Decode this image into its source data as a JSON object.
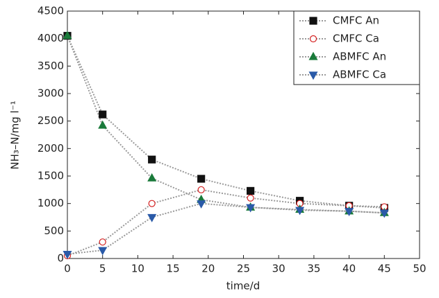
{
  "chart_data": {
    "type": "line",
    "xlabel": "time/d",
    "ylabel": "NH₃–N/mg l⁻¹",
    "xlim": [
      0,
      50
    ],
    "xticks": [
      0,
      5,
      10,
      15,
      20,
      25,
      30,
      35,
      40,
      45,
      50
    ],
    "ylim": [
      0,
      4500
    ],
    "yticks": [
      0,
      500,
      1000,
      1500,
      2000,
      2500,
      3000,
      3500,
      4000,
      4500
    ],
    "grid": false,
    "legend": "upper right",
    "x": [
      0,
      5,
      12,
      19,
      26,
      33,
      40,
      45
    ],
    "series": [
      {
        "name": "CMFC An",
        "color": "#111111",
        "marker": "square",
        "filled": true,
        "values": [
          4050,
          2620,
          1800,
          1450,
          1230,
          1050,
          960,
          920
        ]
      },
      {
        "name": "CMFC Ca",
        "color": "#d42020",
        "marker": "circle",
        "filled": false,
        "values": [
          50,
          300,
          1000,
          1250,
          1100,
          1000,
          960,
          940
        ]
      },
      {
        "name": "ABMFC An",
        "color": "#1a7a3a",
        "marker": "triangle-up",
        "filled": true,
        "values": [
          4050,
          2420,
          1460,
          1070,
          930,
          890,
          860,
          830
        ]
      },
      {
        "name": "ABMFC Ca",
        "color": "#2a5aa8",
        "marker": "triangle-down",
        "filled": true,
        "values": [
          80,
          150,
          750,
          1000,
          930,
          880,
          860,
          830
        ]
      }
    ]
  }
}
